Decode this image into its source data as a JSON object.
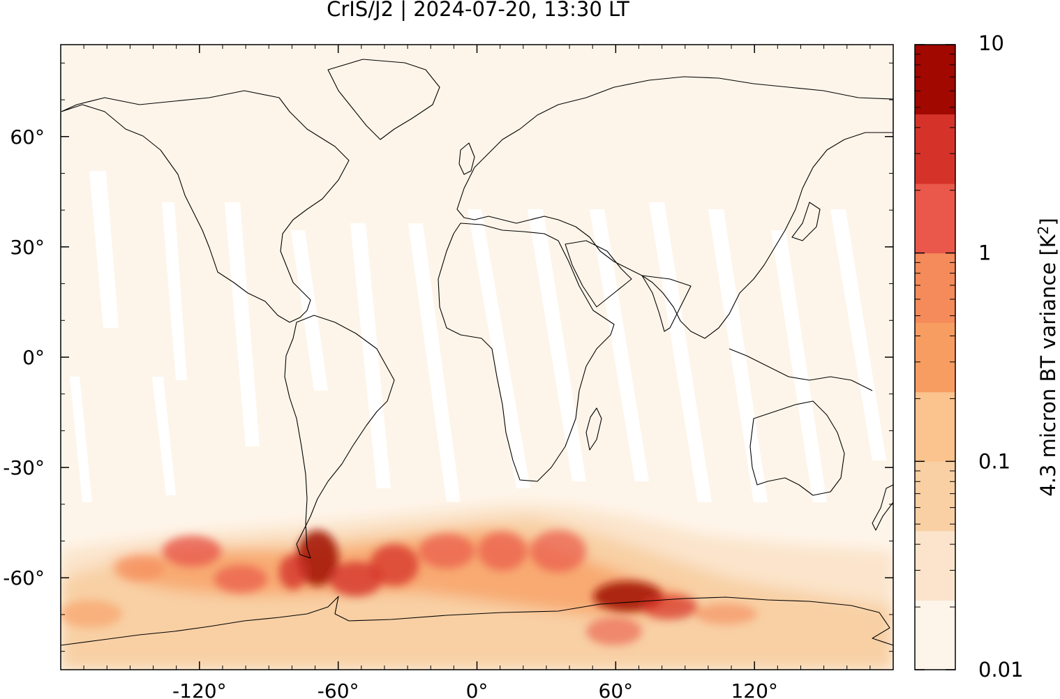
{
  "title": "CrIS/J2 | 2024-07-20, 13:30 LT",
  "colorbar": {
    "label": "4.3 micron BT variance [K²]",
    "label_base": "4.3 micron BT variance [K",
    "label_sup": "2",
    "label_end": "]",
    "scale": "log",
    "range": [
      0.01,
      10
    ],
    "ticks": [
      {
        "value": 10,
        "label": "10"
      },
      {
        "value": 1,
        "label": "1"
      },
      {
        "value": 0.1,
        "label": "0.1"
      },
      {
        "value": 0.01,
        "label": "0.01"
      }
    ],
    "levels": [
      "#fff5eb",
      "#fee6ce",
      "#fdd0a2",
      "#fdae6b",
      "#fd8d3c",
      "#f16913",
      "#e4583b",
      "#d03021",
      "#a50f15",
      "#7f0000"
    ],
    "bin_colors": [
      "#fef5ea",
      "#fbe4cb",
      "#f8d0a4",
      "#fbc38e",
      "#f89d62",
      "#f58a5b",
      "#e9584a",
      "#d5332a",
      "#a00800"
    ]
  },
  "map": {
    "lon_ticks": [
      {
        "value": -120,
        "label": "-120°"
      },
      {
        "value": -60,
        "label": "-60°"
      },
      {
        "value": 0,
        "label": "0°"
      },
      {
        "value": 60,
        "label": "60°"
      },
      {
        "value": 120,
        "label": "120°"
      }
    ],
    "lat_ticks": [
      {
        "value": 60,
        "label": "60°"
      },
      {
        "value": 30,
        "label": "30°"
      },
      {
        "value": 0,
        "label": "0°"
      },
      {
        "value": -30,
        "label": "-30°"
      },
      {
        "value": -60,
        "label": "-60°"
      }
    ],
    "lon_range": [
      -180,
      180
    ],
    "lat_range": [
      -85,
      85
    ],
    "background_color": "#fef5ea",
    "gap_color": "#ffffff",
    "hotspot_region": "Southern Ocean / Drake Passage"
  }
}
